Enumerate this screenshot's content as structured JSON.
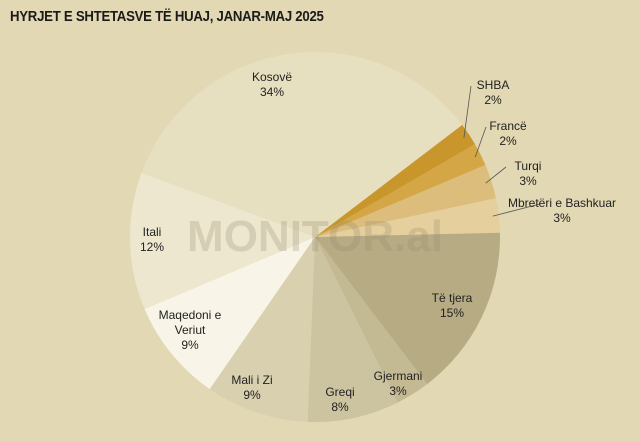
{
  "chart_data": {
    "type": "pie",
    "title": "HYRJET E SHTETASVE TË HUAJ, JANAR-MAJ 2025",
    "watermark": "MONITOR.al",
    "categories": [
      "SHBA",
      "Francë",
      "Turqi",
      "Mbretëri e Bashkuar",
      "Të tjera",
      "Gjermani",
      "Greqi",
      "Mali i Zi",
      "Maqedoni e Veriut",
      "Itali",
      "Kosovë"
    ],
    "values": [
      2,
      2,
      3,
      3,
      15,
      3,
      8,
      9,
      9,
      12,
      34
    ],
    "value_labels": [
      "2%",
      "2%",
      "3%",
      "3%",
      "15%",
      "3%",
      "8%",
      "9%",
      "9%",
      "12%",
      "34%"
    ],
    "colors": [
      "#c8962a",
      "#d4a646",
      "#dcbd7c",
      "#e5cf9d",
      "#b6ab83",
      "#c3b993",
      "#ccc3a0",
      "#d8d0af",
      "#f8f4e7",
      "#ede7cf",
      "#e6dfc0"
    ]
  }
}
